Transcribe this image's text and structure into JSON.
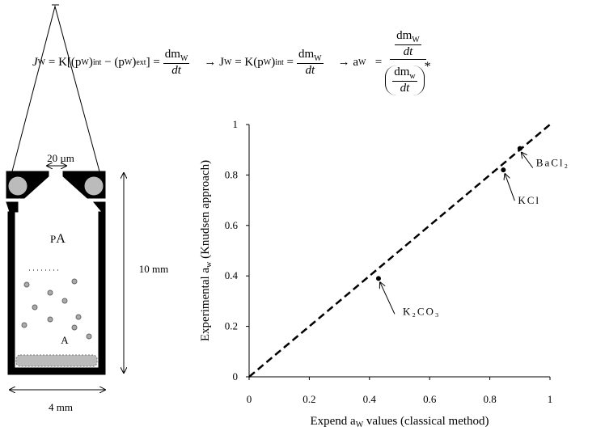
{
  "equation": {
    "parts": [
      "J",
      "W",
      "= K[(p",
      "W",
      ")",
      "int",
      "− (p",
      "W",
      ")",
      "ext",
      "] =",
      "dm",
      "W",
      "dt",
      "→ J",
      "W",
      "= K(p",
      "W",
      ")",
      "int",
      "=",
      "dm",
      "W",
      "dt",
      "→ a",
      "W",
      "=",
      "dm",
      "W",
      "dt",
      "dm",
      "w",
      "dt",
      "*"
    ]
  },
  "diagram": {
    "gap_label": "20 µm",
    "pressure_label": "P",
    "pressure_sub": "A",
    "sample_label": "A",
    "height_label": "10 mm",
    "width_label": "4 mm"
  },
  "chart_data": {
    "type": "scatter",
    "xlabel": [
      "Expend a",
      "W",
      " values (classical method)"
    ],
    "ylabel": [
      "Experimental a",
      "w",
      " (Knudsen approach)"
    ],
    "labels": [
      "K₂CO₃",
      "KCl",
      "BaCl₂"
    ],
    "x": [
      0.43,
      0.845,
      0.9
    ],
    "values": [
      0.39,
      0.82,
      0.905
    ],
    "color": "#000000",
    "reference_line": {
      "x": [
        0,
        1
      ],
      "values": [
        0,
        1
      ],
      "style": "dashed"
    },
    "xlim": [
      0,
      1
    ],
    "ylim": [
      0,
      1
    ],
    "xticks": [
      0,
      0.2,
      0.4,
      0.6,
      0.8,
      1
    ],
    "yticks": [
      0,
      0.2,
      0.4,
      0.6,
      0.8,
      1
    ],
    "grid": false
  }
}
